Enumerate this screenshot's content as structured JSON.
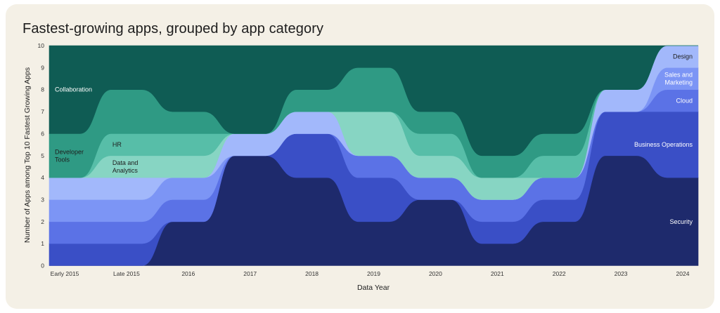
{
  "chart_data": {
    "type": "area",
    "title": "Fastest-growing apps, grouped by app category",
    "xlabel": "Data Year",
    "ylabel": "Number of Apps among Top 10 Fastest Growing Apps",
    "ylim": [
      0,
      10
    ],
    "yticks": [
      "0",
      "1",
      "2",
      "3",
      "4",
      "5",
      "6",
      "7",
      "8",
      "9",
      "10"
    ],
    "categories": [
      "Early 2015",
      "Late 2015",
      "2016",
      "2017",
      "2018",
      "2019",
      "2020",
      "2021",
      "2022",
      "2023",
      "2024"
    ],
    "series": [
      {
        "name": "Security",
        "color": "#1e2a6c",
        "text_color": "#ffffff",
        "values": [
          0,
          0,
          2,
          5,
          4,
          2,
          3,
          1,
          2,
          5,
          4
        ]
      },
      {
        "name": "Business Operations",
        "color": "#3a4fc6",
        "text_color": "#ffffff",
        "values": [
          1,
          1,
          0,
          0,
          2,
          2,
          0,
          1,
          1,
          2,
          3
        ]
      },
      {
        "name": "Cloud",
        "color": "#5b72e6",
        "text_color": "#ffffff",
        "values": [
          1,
          1,
          1,
          0,
          0,
          1,
          1,
          1,
          1,
          0,
          1
        ]
      },
      {
        "name": "Sales and Marketing",
        "color": "#7c95f5",
        "text_color": "#ffffff",
        "values": [
          1,
          1,
          1,
          0,
          0,
          0,
          0,
          0,
          0,
          0,
          1
        ]
      },
      {
        "name": "Design",
        "color": "#a2b8fb",
        "text_color": "#1d1d1d",
        "values": [
          1,
          1,
          0,
          1,
          1,
          0,
          0,
          0,
          0,
          1,
          1
        ]
      },
      {
        "name": "Data and Analytics",
        "color": "#87d5c3",
        "text_color": "#1d1d1d",
        "values": [
          0,
          1,
          1,
          0,
          0,
          2,
          1,
          1,
          0,
          0,
          0
        ]
      },
      {
        "name": "HR",
        "color": "#57bea8",
        "text_color": "#1d1d1d",
        "values": [
          0,
          1,
          1,
          0,
          0,
          0,
          1,
          0,
          1,
          0,
          0
        ]
      },
      {
        "name": "Developer Tools",
        "color": "#2f9a84",
        "text_color": "#1d1d1d",
        "values": [
          2,
          2,
          1,
          0,
          1,
          2,
          1,
          1,
          1,
          0,
          0
        ]
      },
      {
        "name": "Collaboration",
        "color": "#0f5c54",
        "text_color": "#ffffff",
        "values": [
          4,
          2,
          3,
          4,
          2,
          1,
          3,
          5,
          4,
          2,
          0
        ]
      }
    ]
  }
}
